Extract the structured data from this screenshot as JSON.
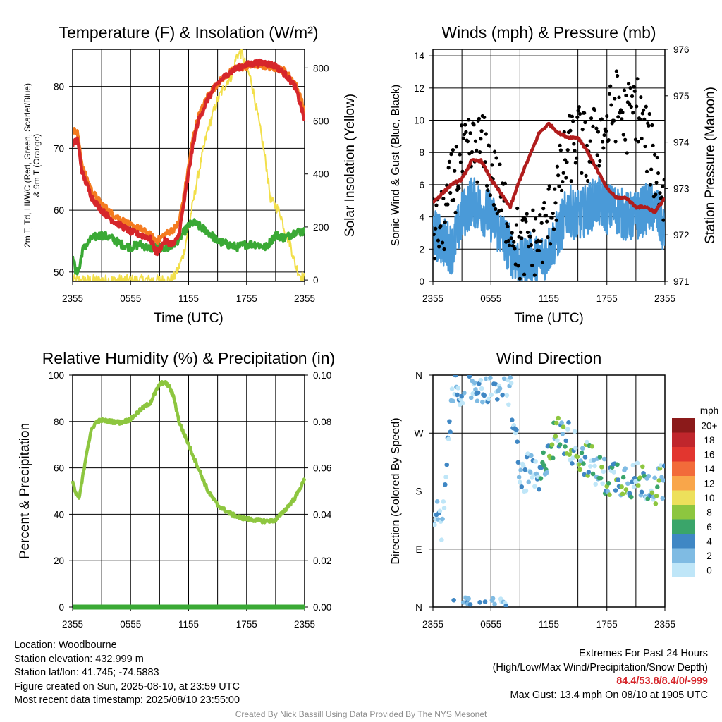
{
  "chart_data": [
    {
      "type": "line",
      "title": "Temperature (F) & Insolation (W/m²)",
      "xlabel": "Time (UTC)",
      "ylabel": "2m T, Td, HI/WC (Red, Green, Scarlet/Blue) & 9m T (Orange)",
      "y2label": "Solar Insolation (Yellow)",
      "x_ticks": [
        "2355",
        "0555",
        "1155",
        "1755",
        "2355"
      ],
      "x_range_hours": [
        0,
        24
      ],
      "ylim": [
        48.5,
        86
      ],
      "yticks": [
        50,
        60,
        70,
        80
      ],
      "y2lim": [
        -5,
        870
      ],
      "y2ticks": [
        0,
        200,
        400,
        600,
        800
      ],
      "grid": true,
      "series": [
        {
          "axis": "y",
          "color": "#f47b20",
          "x": [
            0,
            0.5,
            1,
            2,
            3,
            4,
            5,
            6,
            7,
            8,
            8.7,
            9.5,
            10.5,
            11,
            11.5,
            12,
            12.5,
            13,
            14,
            15,
            16,
            17,
            18,
            19,
            20,
            21,
            22,
            23,
            23.5,
            24
          ],
          "values": [
            73,
            72.5,
            67,
            63,
            61,
            59.5,
            58.5,
            57.5,
            57,
            56,
            55,
            56,
            57,
            58,
            62,
            67,
            72,
            75,
            78.5,
            80.5,
            82,
            83,
            83.2,
            83.5,
            83.3,
            83,
            82.5,
            80.5,
            78.5,
            76
          ]
        },
        {
          "axis": "y",
          "color": "#d6262b",
          "x": [
            0,
            0.5,
            1,
            2,
            3,
            4,
            5,
            6,
            7,
            8,
            8.7,
            9.5,
            10.5,
            11,
            11.5,
            12,
            12.5,
            13,
            14,
            15,
            16,
            17,
            18,
            19,
            20,
            21,
            22,
            23,
            23.5,
            24
          ],
          "values": [
            70.5,
            71.5,
            66,
            62,
            60,
            58.5,
            57.5,
            56.5,
            56,
            55.5,
            53,
            55,
            54.5,
            56,
            61,
            66,
            71,
            74.5,
            78,
            80.5,
            82,
            83,
            83.5,
            83.8,
            83.8,
            83.3,
            82,
            80,
            77.5,
            74.5
          ]
        },
        {
          "axis": "y",
          "color": "#3aa935",
          "x": [
            0,
            0.3,
            0.7,
            1,
            2,
            3,
            4,
            5,
            6,
            7,
            8,
            9,
            10,
            11,
            12,
            12.5,
            13,
            14,
            15,
            16,
            17,
            18,
            19,
            20,
            21,
            22,
            23,
            24
          ],
          "values": [
            53,
            50,
            50.5,
            53.5,
            55.5,
            56,
            55.5,
            54.5,
            54,
            54.5,
            53.8,
            54,
            53.8,
            55.3,
            57.5,
            58,
            57.5,
            56.5,
            55,
            54.5,
            54,
            54.5,
            54.5,
            54,
            56,
            55.5,
            56.5,
            56.5
          ]
        },
        {
          "axis": "y2",
          "color": "#f2df4a",
          "x": [
            0,
            9,
            10,
            10.5,
            11,
            11.5,
            12,
            13,
            14,
            15,
            16,
            16.5,
            17,
            17.5,
            18,
            18.5,
            19,
            19.5,
            20,
            20.5,
            21,
            21.5,
            22,
            22.5,
            23,
            23.5,
            24
          ],
          "values": [
            0,
            0,
            0,
            10,
            50,
            100,
            200,
            400,
            570,
            680,
            750,
            770,
            850,
            855,
            800,
            750,
            650,
            550,
            440,
            300,
            280,
            250,
            180,
            140,
            60,
            20,
            5
          ]
        }
      ]
    },
    {
      "type": "scatter",
      "title": "Winds (mph) & Pressure (mb)",
      "xlabel": "Time (UTC)",
      "ylabel": "Sonic Wind & Gust (Blue, Black)",
      "y2label": "Station Pressure (Maroon)",
      "x_ticks": [
        "2355",
        "0555",
        "1155",
        "1755",
        "2355"
      ],
      "x_range_hours": [
        0,
        24
      ],
      "ylim": [
        0,
        14.4
      ],
      "yticks": [
        0,
        2,
        4,
        6,
        8,
        10,
        12,
        14
      ],
      "y2lim": [
        971,
        976
      ],
      "y2ticks": [
        971,
        972,
        973,
        974,
        975,
        976
      ],
      "grid": true,
      "sustained_wind": {
        "color": "#4a9ad8",
        "x": [
          0,
          1,
          2,
          3,
          4,
          5,
          6,
          7,
          8,
          9,
          10,
          11,
          12,
          13,
          14,
          15,
          16,
          17,
          18,
          19,
          20,
          21,
          22,
          23,
          24
        ],
        "values": [
          3,
          2.5,
          2,
          4,
          5,
          4.5,
          4,
          3,
          2,
          1,
          1.5,
          1.2,
          2,
          3,
          4.5,
          4,
          4.5,
          5,
          4.5,
          4.5,
          4,
          4,
          4.5,
          4.5,
          3
        ]
      },
      "gust": {
        "color": "#000000",
        "x": [
          0,
          1,
          2,
          3,
          4,
          5,
          6,
          7,
          8,
          9,
          10,
          11,
          12,
          13,
          14,
          15,
          16,
          17,
          18,
          19,
          20,
          21,
          22,
          23,
          24
        ],
        "values": [
          3,
          3.5,
          6,
          7.5,
          8,
          8.5,
          7,
          5,
          4,
          2,
          2.5,
          2.5,
          4,
          6,
          8,
          9,
          8,
          9,
          9.5,
          11,
          10,
          11,
          9,
          7,
          5
        ]
      },
      "pressure": {
        "color": "#b01c1c",
        "x": [
          0,
          1,
          2,
          3,
          4,
          5,
          6,
          7,
          8,
          9,
          10,
          11,
          12,
          13,
          14,
          15,
          16,
          17,
          18,
          19,
          20,
          21,
          22,
          23,
          24
        ],
        "values": [
          972.7,
          972.9,
          973.1,
          973.2,
          973.6,
          973.6,
          973.2,
          972.9,
          972.6,
          973.2,
          973.7,
          974.2,
          974.4,
          974.2,
          974.1,
          974.1,
          973.8,
          973.4,
          973.0,
          972.8,
          972.8,
          972.6,
          972.6,
          972.5,
          972.8
        ]
      }
    },
    {
      "type": "line",
      "title": "Relative Humidity (%) & Precipitation (in)",
      "xlabel": "",
      "ylabel": "Percent & Precipitation",
      "x_ticks": [
        "2355",
        "0555",
        "1155",
        "1755",
        "2355"
      ],
      "x_range_hours": [
        0,
        24
      ],
      "ylim": [
        0,
        100
      ],
      "yticks": [
        0,
        20,
        40,
        60,
        80,
        100
      ],
      "y2lim": [
        0,
        0.1
      ],
      "y2ticks": [
        "0.00",
        "0.02",
        "0.04",
        "0.06",
        "0.08",
        "0.10"
      ],
      "grid": true,
      "series": [
        {
          "color": "#8dc63f",
          "x": [
            0,
            0.3,
            0.7,
            1,
            1.5,
            2,
            2.5,
            3,
            4,
            5,
            6,
            7,
            8,
            8.5,
            9,
            9.5,
            10,
            10.5,
            11,
            11.5,
            12,
            13,
            14,
            15,
            16,
            17,
            18,
            19,
            20,
            21,
            22,
            23,
            24
          ],
          "values": [
            54,
            49,
            47,
            55,
            68,
            77,
            80,
            80.5,
            80,
            79.5,
            81,
            85,
            88,
            92,
            96,
            97,
            95,
            90,
            80,
            75,
            70,
            60,
            50,
            44,
            41,
            39,
            38,
            37.5,
            37,
            37.5,
            42,
            47,
            55
          ]
        },
        {
          "color": "#3aa935",
          "x": [
            0,
            24
          ],
          "values": [
            0,
            0
          ]
        }
      ]
    },
    {
      "type": "scatter",
      "title": "Wind Direction",
      "ylabel": "Direction (Colored By Speed)",
      "x_ticks": [
        "2355",
        "0555",
        "1155",
        "1755",
        "2355"
      ],
      "x_range_hours": [
        0,
        24
      ],
      "y_ticks": [
        "N",
        "E",
        "S",
        "W",
        "N"
      ],
      "ylim_degrees": [
        0,
        360
      ],
      "grid": true,
      "colorbar": {
        "title": "mph",
        "labels": [
          "20+",
          "18",
          "16",
          "14",
          "12",
          "10",
          "8",
          "6",
          "4",
          "2",
          "0"
        ],
        "colors": [
          "#8b1a1a",
          "#c0262c",
          "#e2362f",
          "#f26b3a",
          "#f9a64a",
          "#ede05b",
          "#8dc63f",
          "#3aa56a",
          "#3f87c4",
          "#7fbbe3",
          "#bfe6f8"
        ]
      },
      "points_summary": {
        "x": [
          0,
          1,
          2,
          3,
          4,
          5,
          6,
          7,
          8,
          9,
          10,
          11,
          12,
          13,
          14,
          15,
          16,
          17,
          18,
          19,
          20,
          21,
          22,
          23,
          24
        ],
        "direction_deg": [
          150,
          120,
          340,
          345,
          345,
          345,
          345,
          345,
          340,
          200,
          210,
          190,
          250,
          270,
          260,
          240,
          230,
          210,
          200,
          205,
          200,
          195,
          195,
          190,
          190
        ]
      }
    }
  ],
  "info_left": {
    "location": "Location: Woodbourne",
    "elevation": "Station elevation: 432.999 m",
    "latlon": "Station lat/lon: 41.745; -74.5883",
    "created": "Figure created on Sun, 2025-08-10, at 23:59 UTC",
    "recent": "Most recent data timestamp: 2025/08/10 23:55:00"
  },
  "info_right": {
    "line1": "Extremes For Past 24 Hours",
    "line2": "(High/Low/Max Wind/Precipitation/Snow Depth)",
    "values": "84.4/53.8/8.4/0/-999",
    "gust": "Max Gust: 13.4 mph On 08/10 at 1905 UTC"
  },
  "credit": "Created By Nick Bassill Using Data Provided By The NYS Mesonet"
}
